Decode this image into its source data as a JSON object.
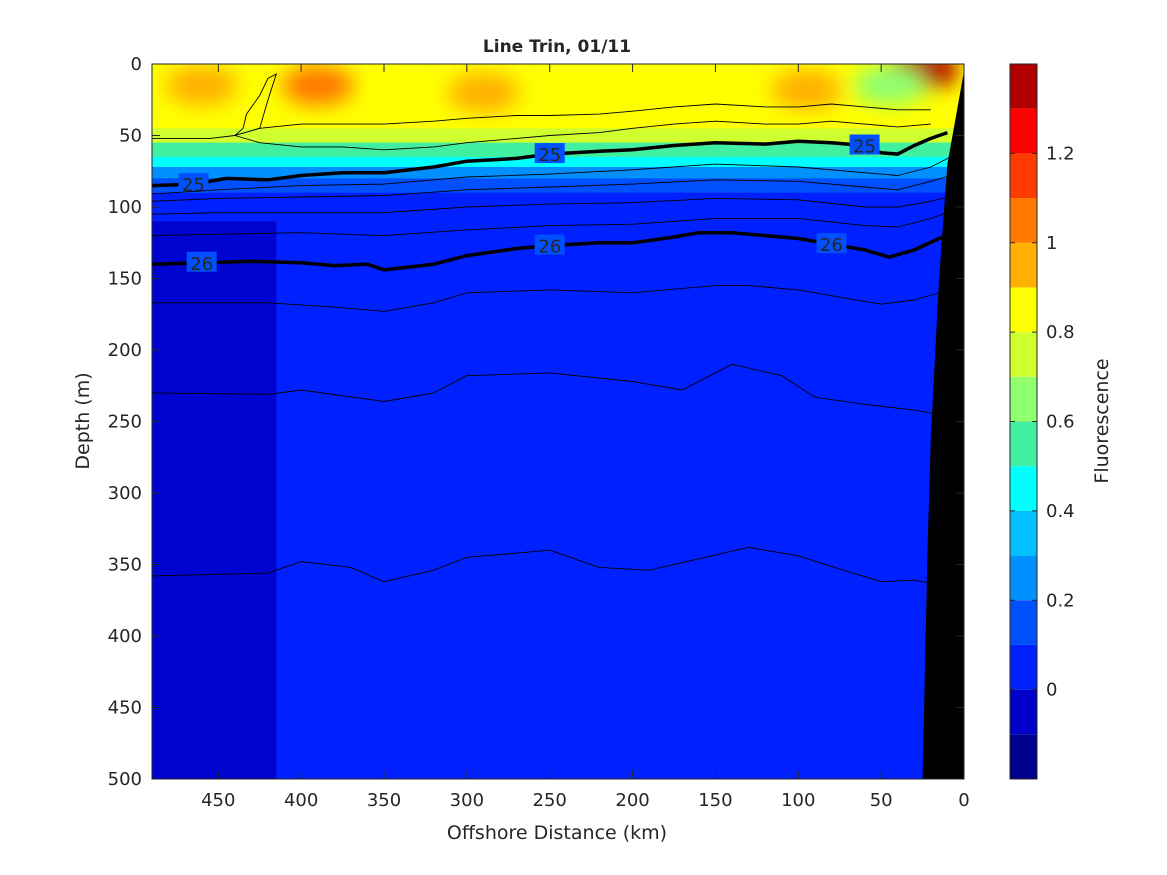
{
  "chart_data": {
    "type": "heatmap",
    "title": "Line Trin, 01/11",
    "xlabel": "Offshore Distance (km)",
    "ylabel": "Depth (m)",
    "colorbar_label": "Fluorescence",
    "x_reversed": true,
    "y_reversed": true,
    "xlim": [
      0,
      490
    ],
    "ylim": [
      0,
      500
    ],
    "x_ticks": [
      450,
      400,
      350,
      300,
      250,
      200,
      150,
      100,
      50,
      0
    ],
    "y_ticks": [
      0,
      50,
      100,
      150,
      200,
      250,
      300,
      350,
      400,
      450,
      500
    ],
    "colorbar": {
      "clim": [
        -0.2,
        1.4
      ],
      "ticks": [
        0,
        0.2,
        0.4,
        0.6,
        0.8,
        1,
        1.2
      ],
      "levels": [
        {
          "from": -0.2,
          "to": -0.1,
          "color": "#00008f"
        },
        {
          "from": -0.1,
          "to": 0.0,
          "color": "#0000c8"
        },
        {
          "from": 0.0,
          "to": 0.1,
          "color": "#0020ff"
        },
        {
          "from": 0.1,
          "to": 0.2,
          "color": "#0050ff"
        },
        {
          "from": 0.2,
          "to": 0.3,
          "color": "#0090ff"
        },
        {
          "from": 0.3,
          "to": 0.4,
          "color": "#00c0ff"
        },
        {
          "from": 0.4,
          "to": 0.5,
          "color": "#00ffff"
        },
        {
          "from": 0.5,
          "to": 0.6,
          "color": "#40f0a0"
        },
        {
          "from": 0.6,
          "to": 0.7,
          "color": "#90ff70"
        },
        {
          "from": 0.7,
          "to": 0.8,
          "color": "#d0ff30"
        },
        {
          "from": 0.8,
          "to": 0.9,
          "color": "#ffff00"
        },
        {
          "from": 0.9,
          "to": 1.0,
          "color": "#ffb000"
        },
        {
          "from": 1.0,
          "to": 1.1,
          "color": "#ff7800"
        },
        {
          "from": 1.1,
          "to": 1.2,
          "color": "#ff3c00"
        },
        {
          "from": 1.2,
          "to": 1.3,
          "color": "#ff0000"
        },
        {
          "from": 1.3,
          "to": 1.4,
          "color": "#b00000"
        }
      ]
    },
    "field_depth_profile": [
      {
        "depth": 0,
        "value": 0.85
      },
      {
        "depth": 20,
        "value": 0.85
      },
      {
        "depth": 35,
        "value": 0.8
      },
      {
        "depth": 45,
        "value": 0.7
      },
      {
        "depth": 55,
        "value": 0.55
      },
      {
        "depth": 65,
        "value": 0.4
      },
      {
        "depth": 72,
        "value": 0.28
      },
      {
        "depth": 80,
        "value": 0.18
      },
      {
        "depth": 90,
        "value": 0.08
      },
      {
        "depth": 500,
        "value": 0.05
      }
    ],
    "surface_patches": [
      {
        "x": 390,
        "depth": 15,
        "value": 1.05
      },
      {
        "x": 460,
        "depth": 15,
        "value": 0.95
      },
      {
        "x": 290,
        "depth": 20,
        "value": 0.95
      },
      {
        "x": 95,
        "depth": 18,
        "value": 0.95
      },
      {
        "x": 25,
        "depth": 4,
        "value": 1.3
      },
      {
        "x": 45,
        "depth": 15,
        "value": 0.6
      }
    ],
    "deep_patches": [
      {
        "x_from": 490,
        "x_to": 415,
        "depth_from": 110,
        "depth_to": 500,
        "value": -0.05
      }
    ],
    "density_contours": [
      {
        "label": "",
        "width": "thin",
        "points": [
          [
            490,
            52
          ],
          [
            455,
            52
          ],
          [
            440,
            50
          ],
          [
            425,
            45
          ],
          [
            400,
            42
          ],
          [
            370,
            42
          ],
          [
            350,
            42
          ],
          [
            320,
            40
          ],
          [
            300,
            38
          ],
          [
            270,
            36
          ],
          [
            250,
            36
          ],
          [
            220,
            35
          ],
          [
            200,
            33
          ],
          [
            175,
            30
          ],
          [
            150,
            28
          ],
          [
            120,
            30
          ],
          [
            100,
            30
          ],
          [
            80,
            28
          ],
          [
            60,
            30
          ],
          [
            40,
            32
          ],
          [
            20,
            32
          ]
        ]
      },
      {
        "label": "",
        "width": "thin",
        "points": [
          [
            440,
            50
          ],
          [
            425,
            55
          ],
          [
            400,
            58
          ],
          [
            375,
            58
          ],
          [
            350,
            60
          ],
          [
            320,
            58
          ],
          [
            300,
            55
          ],
          [
            270,
            52
          ],
          [
            250,
            50
          ],
          [
            220,
            48
          ],
          [
            200,
            45
          ],
          [
            175,
            42
          ],
          [
            150,
            40
          ],
          [
            120,
            42
          ],
          [
            100,
            42
          ],
          [
            80,
            40
          ],
          [
            60,
            42
          ],
          [
            40,
            44
          ],
          [
            20,
            42
          ]
        ]
      },
      {
        "label": "25",
        "width": "thick",
        "points": [
          [
            490,
            85
          ],
          [
            465,
            84
          ],
          [
            445,
            80
          ],
          [
            420,
            81
          ],
          [
            400,
            78
          ],
          [
            375,
            76
          ],
          [
            350,
            76
          ],
          [
            320,
            72
          ],
          [
            300,
            68
          ],
          [
            270,
            66
          ],
          [
            250,
            63
          ],
          [
            220,
            61
          ],
          [
            200,
            60
          ],
          [
            175,
            57
          ],
          [
            150,
            55
          ],
          [
            120,
            56
          ],
          [
            100,
            54
          ],
          [
            80,
            55
          ],
          [
            60,
            57
          ],
          [
            50,
            62
          ],
          [
            40,
            63
          ],
          [
            30,
            57
          ],
          [
            20,
            52
          ],
          [
            10,
            48
          ]
        ]
      },
      {
        "label": "",
        "width": "thin",
        "points": [
          [
            490,
            91
          ],
          [
            450,
            88
          ],
          [
            400,
            85
          ],
          [
            350,
            84
          ],
          [
            300,
            79
          ],
          [
            250,
            77
          ],
          [
            200,
            74
          ],
          [
            150,
            70
          ],
          [
            100,
            72
          ],
          [
            60,
            76
          ],
          [
            40,
            78
          ],
          [
            20,
            72
          ],
          [
            8,
            65
          ]
        ]
      },
      {
        "label": "",
        "width": "thin",
        "points": [
          [
            490,
            96
          ],
          [
            450,
            94
          ],
          [
            400,
            93
          ],
          [
            350,
            92
          ],
          [
            300,
            88
          ],
          [
            250,
            86
          ],
          [
            200,
            84
          ],
          [
            150,
            81
          ],
          [
            100,
            82
          ],
          [
            60,
            86
          ],
          [
            40,
            88
          ],
          [
            20,
            82
          ],
          [
            8,
            78
          ]
        ]
      },
      {
        "label": "",
        "width": "thin",
        "points": [
          [
            490,
            105
          ],
          [
            450,
            104
          ],
          [
            400,
            104
          ],
          [
            350,
            104
          ],
          [
            300,
            100
          ],
          [
            250,
            98
          ],
          [
            200,
            97
          ],
          [
            150,
            94
          ],
          [
            100,
            95
          ],
          [
            60,
            100
          ],
          [
            40,
            100
          ],
          [
            20,
            96
          ],
          [
            6,
            92
          ]
        ]
      },
      {
        "label": "",
        "width": "thin",
        "points": [
          [
            490,
            120
          ],
          [
            450,
            119
          ],
          [
            400,
            118
          ],
          [
            350,
            120
          ],
          [
            300,
            116
          ],
          [
            250,
            113
          ],
          [
            200,
            112
          ],
          [
            150,
            108
          ],
          [
            100,
            108
          ],
          [
            60,
            113
          ],
          [
            40,
            114
          ],
          [
            20,
            108
          ],
          [
            6,
            102
          ]
        ]
      },
      {
        "label": "26",
        "width": "thick",
        "points": [
          [
            490,
            140
          ],
          [
            460,
            139
          ],
          [
            430,
            138
          ],
          [
            400,
            139
          ],
          [
            380,
            141
          ],
          [
            360,
            140
          ],
          [
            350,
            144
          ],
          [
            320,
            140
          ],
          [
            300,
            134
          ],
          [
            270,
            129
          ],
          [
            250,
            127
          ],
          [
            220,
            125
          ],
          [
            200,
            125
          ],
          [
            175,
            121
          ],
          [
            160,
            118
          ],
          [
            140,
            118
          ],
          [
            120,
            120
          ],
          [
            100,
            122
          ],
          [
            80,
            126
          ],
          [
            60,
            130
          ],
          [
            45,
            135
          ],
          [
            30,
            130
          ],
          [
            15,
            122
          ],
          [
            5,
            118
          ]
        ]
      },
      {
        "label": "",
        "width": "thin",
        "points": [
          [
            490,
            167
          ],
          [
            420,
            167
          ],
          [
            380,
            170
          ],
          [
            350,
            173
          ],
          [
            320,
            167
          ],
          [
            300,
            160
          ],
          [
            250,
            158
          ],
          [
            200,
            160
          ],
          [
            150,
            155
          ],
          [
            130,
            155
          ],
          [
            100,
            158
          ],
          [
            80,
            162
          ],
          [
            50,
            168
          ],
          [
            30,
            165
          ],
          [
            15,
            160
          ]
        ]
      },
      {
        "label": "",
        "width": "thin",
        "points": [
          [
            490,
            230
          ],
          [
            420,
            231
          ],
          [
            400,
            228
          ],
          [
            350,
            236
          ],
          [
            320,
            230
          ],
          [
            300,
            218
          ],
          [
            250,
            216
          ],
          [
            200,
            222
          ],
          [
            170,
            228
          ],
          [
            140,
            210
          ],
          [
            110,
            218
          ],
          [
            90,
            233
          ],
          [
            60,
            238
          ],
          [
            30,
            242
          ],
          [
            10,
            246
          ]
        ]
      },
      {
        "label": "",
        "width": "thin",
        "points": [
          [
            490,
            358
          ],
          [
            420,
            356
          ],
          [
            400,
            348
          ],
          [
            370,
            352
          ],
          [
            350,
            362
          ],
          [
            320,
            354
          ],
          [
            300,
            345
          ],
          [
            270,
            342
          ],
          [
            250,
            340
          ],
          [
            220,
            352
          ],
          [
            190,
            354
          ],
          [
            160,
            346
          ],
          [
            130,
            338
          ],
          [
            100,
            344
          ],
          [
            70,
            355
          ],
          [
            50,
            362
          ],
          [
            30,
            361
          ],
          [
            10,
            365
          ]
        ]
      }
    ],
    "upper_left_contour": {
      "points": [
        [
          440,
          50
        ],
        [
          435,
          45
        ],
        [
          433,
          35
        ],
        [
          425,
          22
        ],
        [
          420,
          10
        ],
        [
          415,
          7
        ],
        [
          420,
          25
        ],
        [
          425,
          45
        ],
        [
          440,
          50
        ]
      ]
    },
    "bathymetry": {
      "color": "#000000",
      "points": [
        [
          25,
          500
        ],
        [
          0,
          500
        ],
        [
          0,
          5
        ],
        [
          10,
          70
        ],
        [
          15,
          150
        ],
        [
          20,
          260
        ],
        [
          22,
          340
        ],
        [
          25,
          500
        ]
      ]
    }
  }
}
